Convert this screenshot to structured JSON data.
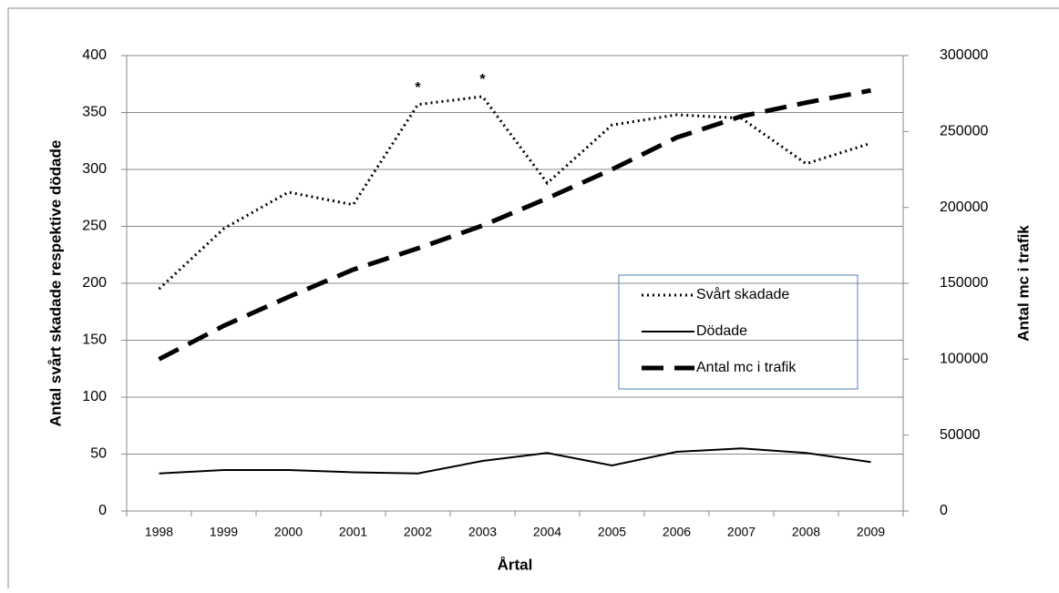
{
  "chart_data": {
    "type": "line",
    "categories": [
      "1998",
      "1999",
      "2000",
      "2001",
      "2002",
      "2003",
      "2004",
      "2005",
      "2006",
      "2007",
      "2008",
      "2009"
    ],
    "series": [
      {
        "name": "Svårt skadade",
        "color": "#000000",
        "style": "dotted",
        "values": [
          195,
          248,
          280,
          269,
          357,
          364,
          288,
          339,
          348,
          345,
          305,
          323
        ]
      },
      {
        "name": "Dödade",
        "color": "#000000",
        "style": "solid",
        "values": [
          33,
          36,
          36,
          34,
          33,
          44,
          51,
          40,
          52,
          55,
          51,
          43
        ]
      },
      {
        "name": "Antal mc i trafik",
        "color": "#000000",
        "style": "dashed",
        "axis": "y2",
        "values": [
          100000,
          122000,
          141000,
          159000,
          173000,
          188000,
          206000,
          225000,
          246000,
          260000,
          269000,
          277000
        ]
      }
    ],
    "xlabel": "Årtal",
    "ylabel": "Antal svårt skadade respektive dödade",
    "y2label": "Antal mc i trafik",
    "ylim": [
      0,
      400
    ],
    "yticks": [
      0,
      50,
      100,
      150,
      200,
      250,
      300,
      350,
      400
    ],
    "y2lim": [
      0,
      300000
    ],
    "y2ticks": [
      0,
      50000,
      100000,
      150000,
      200000,
      250000,
      300000
    ],
    "grid": true,
    "annotations": [
      {
        "text": "*",
        "x": "2002"
      },
      {
        "text": "*",
        "x": "2003"
      }
    ]
  }
}
